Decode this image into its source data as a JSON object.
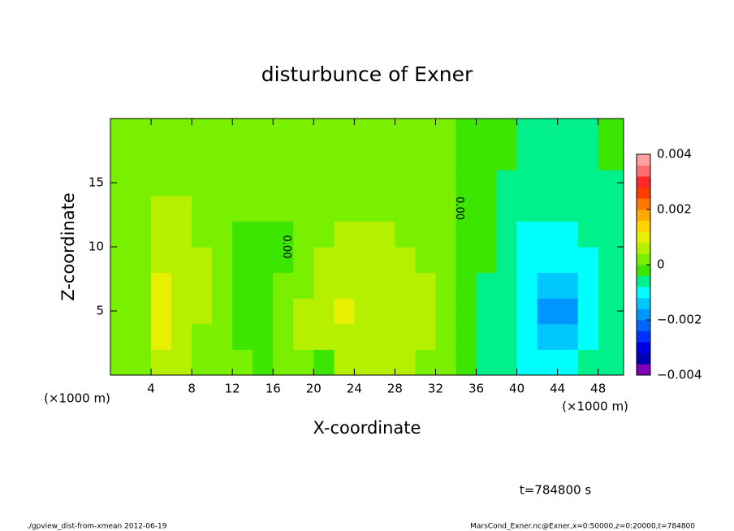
{
  "chart_data": {
    "type": "contour",
    "title": "disturbunce of Exner",
    "x_label": "X-coordinate",
    "y_label": "Z-coordinate",
    "x_unit": "(×1000 m)",
    "y_unit": "(×1000 m)",
    "xlim": [
      0,
      50.5
    ],
    "ylim": [
      0,
      20
    ],
    "xticks": [
      4,
      8,
      12,
      16,
      20,
      24,
      28,
      32,
      36,
      40,
      44,
      48
    ],
    "yticks": [
      5,
      10,
      15
    ],
    "x_edges": [
      0,
      2,
      4,
      6,
      8,
      10,
      12,
      14,
      16,
      18,
      20,
      22,
      24,
      26,
      28,
      30,
      32,
      34,
      36,
      38,
      40,
      42,
      44,
      46,
      48,
      50.5
    ],
    "y_edges": [
      0,
      2,
      4,
      6,
      8,
      10,
      12,
      14,
      16,
      18,
      20
    ],
    "values": [
      [
        0.0002,
        0.0002,
        0.0006,
        0.0006,
        0.0002,
        0.0002,
        0.0002,
        -0.0002,
        0.0002,
        0.0002,
        -0.0002,
        0.0006,
        0.0006,
        0.0006,
        0.0006,
        0.0002,
        0.0002,
        -0.0002,
        -0.0006,
        -0.0006,
        -0.001,
        -0.001,
        -0.001,
        -0.0006,
        -0.0006
      ],
      [
        0.0002,
        0.0002,
        0.001,
        0.0006,
        0.0002,
        0.0002,
        -0.0002,
        -0.0002,
        0.0002,
        0.0006,
        0.0006,
        0.0006,
        0.0006,
        0.0006,
        0.0006,
        0.0006,
        0.0002,
        -0.0002,
        -0.0006,
        -0.0006,
        -0.001,
        -0.0014,
        -0.0014,
        -0.001,
        -0.0006
      ],
      [
        0.0002,
        0.0002,
        0.001,
        0.0006,
        0.0006,
        0.0002,
        -0.0002,
        -0.0002,
        0.0002,
        0.0006,
        0.0006,
        0.001,
        0.0006,
        0.0006,
        0.0006,
        0.0006,
        0.0002,
        -0.0002,
        -0.0006,
        -0.0006,
        -0.001,
        -0.0018,
        -0.0018,
        -0.001,
        -0.0006
      ],
      [
        0.0002,
        0.0002,
        0.001,
        0.0006,
        0.0006,
        0.0002,
        -0.0002,
        -0.0002,
        0.0002,
        0.0002,
        0.0006,
        0.0006,
        0.0006,
        0.0006,
        0.0006,
        0.0006,
        0.0002,
        -0.0002,
        -0.0006,
        -0.0006,
        -0.001,
        -0.0014,
        -0.0014,
        -0.001,
        -0.0006
      ],
      [
        0.0002,
        0.0002,
        0.0006,
        0.0006,
        0.0006,
        0.0002,
        -0.0002,
        -0.0002,
        -0.0002,
        0.0002,
        0.0006,
        0.0006,
        0.0006,
        0.0006,
        0.0006,
        0.0002,
        0.0002,
        -0.0002,
        -0.0002,
        -0.0006,
        -0.001,
        -0.001,
        -0.001,
        -0.001,
        -0.0006
      ],
      [
        0.0002,
        0.0002,
        0.0006,
        0.0006,
        0.0002,
        0.0002,
        -0.0002,
        -0.0002,
        -0.0002,
        0.0002,
        0.0002,
        0.0006,
        0.0006,
        0.0006,
        0.0002,
        0.0002,
        0.0002,
        -0.0002,
        -0.0002,
        -0.0006,
        -0.001,
        -0.001,
        -0.001,
        -0.0006,
        -0.0006
      ],
      [
        0.0002,
        0.0002,
        0.0006,
        0.0006,
        0.0002,
        0.0002,
        0.0002,
        0.0002,
        0.0002,
        0.0002,
        0.0002,
        0.0002,
        0.0002,
        0.0002,
        0.0002,
        0.0002,
        0.0002,
        -0.0002,
        -0.0002,
        -0.0006,
        -0.0006,
        -0.0006,
        -0.0006,
        -0.0006,
        -0.0006
      ],
      [
        0.0002,
        0.0002,
        0.0002,
        0.0002,
        0.0002,
        0.0002,
        0.0002,
        0.0002,
        0.0002,
        0.0002,
        0.0002,
        0.0002,
        0.0002,
        0.0002,
        0.0002,
        0.0002,
        0.0002,
        -0.0002,
        -0.0002,
        -0.0006,
        -0.0006,
        -0.0006,
        -0.0006,
        -0.0006,
        -0.0006
      ],
      [
        0.0002,
        0.0002,
        0.0002,
        0.0002,
        0.0002,
        0.0002,
        0.0002,
        0.0002,
        0.0002,
        0.0002,
        0.0002,
        0.0002,
        0.0002,
        0.0002,
        0.0002,
        0.0002,
        0.0002,
        -0.0002,
        -0.0002,
        -0.0002,
        -0.0006,
        -0.0006,
        -0.0006,
        -0.0006,
        -0.0002
      ],
      [
        0.0002,
        0.0002,
        0.0002,
        0.0002,
        0.0002,
        0.0002,
        0.0002,
        0.0002,
        0.0002,
        0.0002,
        0.0002,
        0.0002,
        0.0002,
        0.0002,
        0.0002,
        0.0002,
        0.0002,
        -0.0002,
        -0.0002,
        -0.0002,
        -0.0006,
        -0.0006,
        -0.0006,
        -0.0006,
        -0.0002
      ]
    ],
    "colorbar": {
      "levels": [
        -0.004,
        -0.0036,
        -0.0032,
        -0.0028,
        -0.0024,
        -0.002,
        -0.0016,
        -0.0012,
        -0.0008,
        -0.0004,
        0,
        0.0004,
        0.0008,
        0.0012,
        0.0016,
        0.002,
        0.0024,
        0.0028,
        0.0032,
        0.0036,
        0.004
      ],
      "colors": [
        "#8000b4",
        "#0000b4",
        "#0000e6",
        "#0032ff",
        "#0064ff",
        "#0096ff",
        "#00c8ff",
        "#00ffff",
        "#00f08c",
        "#3ce600",
        "#78f000",
        "#b4f000",
        "#e6f000",
        "#ffd200",
        "#ffaa00",
        "#ff7800",
        "#ff3c00",
        "#ff2828",
        "#ff6e6e",
        "#ffa0a0"
      ],
      "ticks": [
        {
          "value": -0.004,
          "label": "−0.004"
        },
        {
          "value": -0.002,
          "label": "−0.002"
        },
        0,
        0.002,
        0.004
      ]
    },
    "annotations": [
      {
        "text": "0.00",
        "x": 17.3,
        "y": 10
      },
      {
        "text": "0.00",
        "x": 34.3,
        "y": 13
      }
    ],
    "time_label": "t=784800 s",
    "footer_left": "./gpview_dist-from-xmean  2012-06-19",
    "footer_right": "MarsCond_Exner.nc@Exner,x=0:50000,z=0:20000,t=784800"
  }
}
